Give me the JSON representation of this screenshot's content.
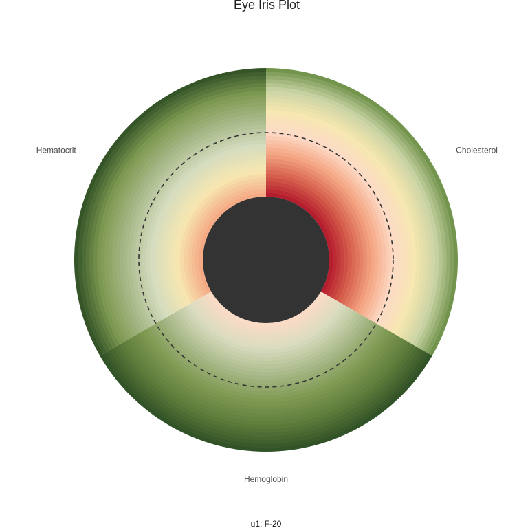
{
  "chart_data": {
    "type": "eye-iris",
    "title": "Eye Iris Plot",
    "caption": "u1: F-20",
    "segments": [
      {
        "name": "Cholesterol",
        "color_stops": [
          "#b2182b",
          "#d6604d",
          "#f4a582",
          "#fddbc7",
          "#f7e7b0",
          "#c9d3a4",
          "#6a8e45"
        ]
      },
      {
        "name": "Hemoglobin",
        "color_stops": [
          "#fddbc7",
          "#d9dcbf",
          "#a9b98a",
          "#7f9a52",
          "#5d7c3b",
          "#2f4f25"
        ]
      },
      {
        "name": "Hematocrit",
        "color_stops": [
          "#f4a582",
          "#f7e7b0",
          "#d4dcbf",
          "#a9b98a",
          "#7f9a52",
          "#2f4f25"
        ]
      }
    ],
    "reference_ring": "dashed",
    "pupil_color": "#333333",
    "grid": false,
    "legend": "none"
  }
}
